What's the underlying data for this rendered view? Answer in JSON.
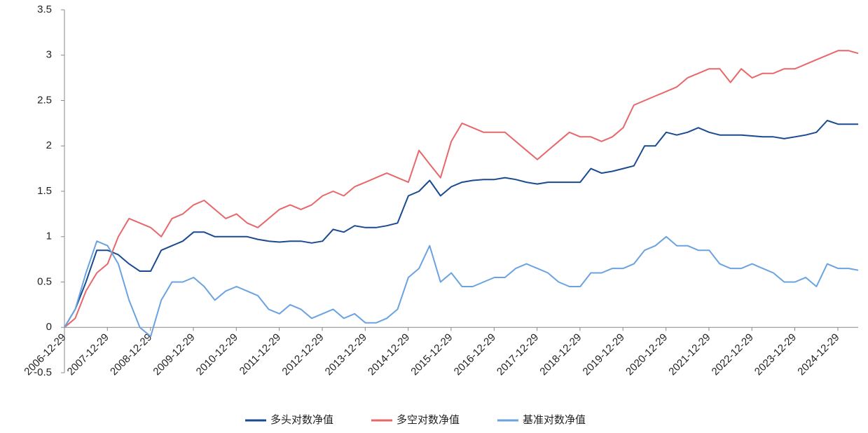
{
  "chart_data": {
    "type": "line",
    "x": [
      "2006-12-29",
      "2007-03-31",
      "2007-06-30",
      "2007-09-30",
      "2007-12-31",
      "2008-03-31",
      "2008-06-30",
      "2008-09-30",
      "2008-12-31",
      "2009-03-31",
      "2009-06-30",
      "2009-09-30",
      "2009-12-31",
      "2010-03-31",
      "2010-06-30",
      "2010-09-30",
      "2010-12-31",
      "2011-03-31",
      "2011-06-30",
      "2011-09-30",
      "2011-12-31",
      "2012-03-31",
      "2012-06-30",
      "2012-09-30",
      "2012-12-31",
      "2013-03-31",
      "2013-06-30",
      "2013-09-30",
      "2013-12-31",
      "2014-03-31",
      "2014-06-30",
      "2014-09-30",
      "2014-12-31",
      "2015-03-31",
      "2015-06-30",
      "2015-09-30",
      "2015-12-31",
      "2016-03-31",
      "2016-06-30",
      "2016-09-30",
      "2016-12-31",
      "2017-03-31",
      "2017-06-30",
      "2017-09-30",
      "2017-12-31",
      "2018-03-31",
      "2018-06-30",
      "2018-09-30",
      "2018-12-31",
      "2019-03-31",
      "2019-06-30",
      "2019-09-30",
      "2019-12-31",
      "2020-03-31",
      "2020-06-30",
      "2020-09-30",
      "2020-12-31",
      "2021-03-31",
      "2021-06-30",
      "2021-09-30",
      "2021-12-31",
      "2022-03-31",
      "2022-06-30",
      "2022-09-30",
      "2022-12-31",
      "2023-03-31",
      "2023-06-30",
      "2023-09-30",
      "2023-12-31",
      "2024-03-31",
      "2024-06-30",
      "2024-09-30",
      "2024-12-31",
      "2025-03-31",
      "2025-06-20"
    ],
    "series": [
      {
        "name": "多头对数净值",
        "color": "#1a4a8f",
        "values": [
          0,
          0.2,
          0.5,
          0.85,
          0.85,
          0.8,
          0.7,
          0.62,
          0.62,
          0.85,
          0.9,
          0.95,
          1.05,
          1.05,
          1.0,
          1.0,
          1.0,
          1.0,
          0.97,
          0.95,
          0.94,
          0.95,
          0.95,
          0.93,
          0.95,
          1.08,
          1.05,
          1.12,
          1.1,
          1.1,
          1.12,
          1.15,
          1.45,
          1.5,
          1.62,
          1.45,
          1.55,
          1.6,
          1.62,
          1.63,
          1.63,
          1.65,
          1.63,
          1.6,
          1.58,
          1.6,
          1.6,
          1.6,
          1.6,
          1.75,
          1.7,
          1.72,
          1.75,
          1.78,
          2.0,
          2.0,
          2.15,
          2.12,
          2.15,
          2.2,
          2.15,
          2.12,
          2.12,
          2.12,
          2.11,
          2.1,
          2.1,
          2.08,
          2.1,
          2.12,
          2.15,
          2.28,
          2.24,
          2.24,
          2.24
        ]
      },
      {
        "name": "多空对数净值",
        "color": "#e8676a",
        "values": [
          0,
          0.1,
          0.4,
          0.6,
          0.7,
          1.0,
          1.2,
          1.15,
          1.1,
          1.0,
          1.2,
          1.25,
          1.35,
          1.4,
          1.3,
          1.2,
          1.25,
          1.15,
          1.1,
          1.2,
          1.3,
          1.35,
          1.3,
          1.35,
          1.45,
          1.5,
          1.45,
          1.55,
          1.6,
          1.65,
          1.7,
          1.65,
          1.6,
          1.95,
          1.8,
          1.65,
          2.05,
          2.25,
          2.2,
          2.15,
          2.15,
          2.15,
          2.05,
          1.95,
          1.85,
          1.95,
          2.05,
          2.15,
          2.1,
          2.1,
          2.05,
          2.1,
          2.2,
          2.45,
          2.5,
          2.55,
          2.6,
          2.65,
          2.75,
          2.8,
          2.85,
          2.85,
          2.7,
          2.85,
          2.75,
          2.8,
          2.8,
          2.85,
          2.85,
          2.9,
          2.95,
          3.0,
          3.05,
          3.05,
          3.02
        ]
      },
      {
        "name": "基准对数净值",
        "color": "#6aa3e0",
        "values": [
          0,
          0.2,
          0.6,
          0.95,
          0.9,
          0.7,
          0.3,
          0.0,
          -0.1,
          0.3,
          0.5,
          0.5,
          0.55,
          0.45,
          0.3,
          0.4,
          0.45,
          0.4,
          0.35,
          0.2,
          0.15,
          0.25,
          0.2,
          0.1,
          0.15,
          0.2,
          0.1,
          0.15,
          0.05,
          0.05,
          0.1,
          0.2,
          0.55,
          0.65,
          0.9,
          0.5,
          0.6,
          0.45,
          0.45,
          0.5,
          0.55,
          0.55,
          0.65,
          0.7,
          0.65,
          0.6,
          0.5,
          0.45,
          0.45,
          0.6,
          0.6,
          0.65,
          0.65,
          0.7,
          0.85,
          0.9,
          1.0,
          0.9,
          0.9,
          0.85,
          0.85,
          0.7,
          0.65,
          0.65,
          0.7,
          0.65,
          0.6,
          0.5,
          0.5,
          0.55,
          0.45,
          0.7,
          0.65,
          0.65,
          0.63
        ]
      }
    ],
    "xlim": [
      "2006-12-29",
      "2025-06-20"
    ],
    "xticks": [
      "2006-12-29",
      "2007-12-29",
      "2008-12-29",
      "2009-12-29",
      "2010-12-29",
      "2011-12-29",
      "2012-12-29",
      "2013-12-29",
      "2014-12-29",
      "2015-12-29",
      "2016-12-29",
      "2017-12-29",
      "2018-12-29",
      "2019-12-29",
      "2020-12-29",
      "2021-12-29",
      "2022-12-29",
      "2023-12-29",
      "2024-12-29"
    ],
    "ylim": [
      -0.5,
      3.5
    ],
    "yticks": [
      -0.5,
      0,
      0.5,
      1,
      1.5,
      2,
      2.5,
      3,
      3.5
    ],
    "legend": "bottom",
    "grid": false
  }
}
